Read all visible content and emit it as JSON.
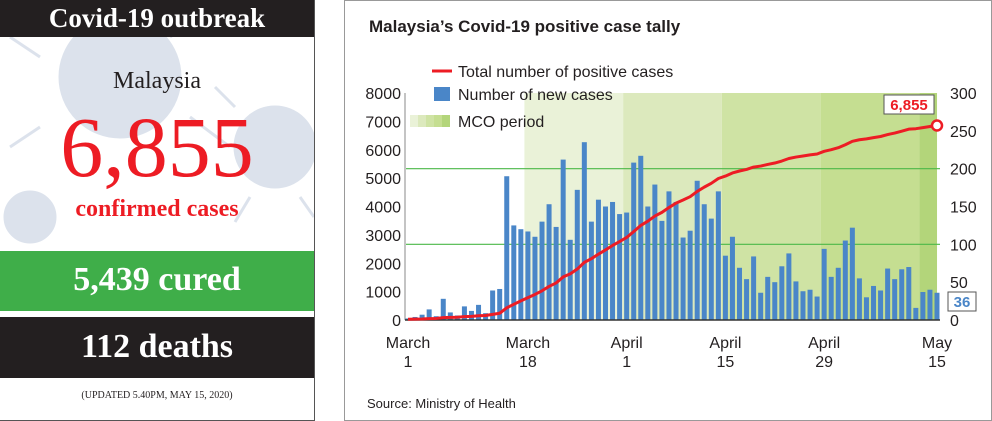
{
  "panel": {
    "header": "Covid-19 outbreak",
    "country": "Malaysia",
    "confirmed_number": "6,855",
    "confirmed_label": "confirmed cases",
    "cured": "5,439 cured",
    "deaths": "112 deaths",
    "updated": "(UPDATED 5.40PM, MAY 15, 2020)"
  },
  "colors": {
    "red": "#ed1c24",
    "green": "#3fae49",
    "black": "#231f20",
    "bar_blue": "#4a86c8"
  },
  "chart_data": {
    "type": "bar+line",
    "title": "Malaysia’s Covid-19 positive case tally",
    "source": "Source: Ministry of Health",
    "legend": [
      "Total number of positive cases",
      "Number of new cases",
      "MCO period"
    ],
    "legend_placement": "top-left",
    "x_start": "March 1",
    "x_end": "May 15",
    "x_ticks": [
      {
        "day": 0,
        "l1": "March",
        "l2": "1"
      },
      {
        "day": 17,
        "l1": "March",
        "l2": "18"
      },
      {
        "day": 31,
        "l1": "April",
        "l2": "1"
      },
      {
        "day": 45,
        "l1": "April",
        "l2": "15"
      },
      {
        "day": 59,
        "l1": "April",
        "l2": "29"
      },
      {
        "day": 75,
        "l1": "May",
        "l2": "15"
      }
    ],
    "left_axis": {
      "series": "Total number of positive cases",
      "ylim": [
        0,
        8000
      ],
      "ticks": [
        "0",
        "1000",
        "2000",
        "3000",
        "4000",
        "5000",
        "6000",
        "7000",
        "8000"
      ]
    },
    "right_axis": {
      "series": "Number of new cases",
      "ylim": [
        0,
        300
      ],
      "ticks": [
        "0",
        "50",
        "100",
        "150",
        "200",
        "250",
        "300"
      ]
    },
    "gridlines_right_axis": [
      100,
      200
    ],
    "mco_phases": [
      {
        "start_day": 17,
        "end_day": 31,
        "color": "#eaf2d8"
      },
      {
        "start_day": 31,
        "end_day": 45,
        "color": "#dce9bd"
      },
      {
        "start_day": 45,
        "end_day": 59,
        "color": "#cfe3a4"
      },
      {
        "start_day": 59,
        "end_day": 73,
        "color": "#c5de91"
      },
      {
        "start_day": 73,
        "end_day": 75.5,
        "color": "#b3d57a"
      }
    ],
    "new_cases": [
      2,
      4,
      7,
      14,
      5,
      28,
      10,
      6,
      18,
      12,
      20,
      9,
      39,
      41,
      190,
      125,
      120,
      117,
      110,
      130,
      153,
      123,
      212,
      106,
      172,
      235,
      130,
      159,
      150,
      156,
      140,
      142,
      208,
      217,
      150,
      179,
      131,
      170,
      156,
      109,
      118,
      184,
      153,
      134,
      170,
      85,
      110,
      69,
      54,
      84,
      36,
      57,
      50,
      71,
      88,
      51,
      38,
      40,
      31,
      94,
      57,
      69,
      105,
      122,
      55,
      30,
      45,
      39,
      68,
      54,
      67,
      70,
      16,
      37,
      40,
      36
    ],
    "total_cases": [
      25,
      29,
      36,
      50,
      55,
      83,
      93,
      99,
      117,
      129,
      149,
      158,
      197,
      238,
      428,
      553,
      673,
      790,
      900,
      1030,
      1183,
      1306,
      1518,
      1624,
      1796,
      2031,
      2161,
      2320,
      2470,
      2626,
      2766,
      2908,
      3116,
      3333,
      3483,
      3662,
      3793,
      3963,
      4119,
      4228,
      4346,
      4530,
      4683,
      4817,
      4987,
      5072,
      5182,
      5251,
      5305,
      5389,
      5425,
      5482,
      5532,
      5603,
      5691,
      5742,
      5780,
      5820,
      5851,
      5945,
      6002,
      6071,
      6176,
      6298,
      6353,
      6383,
      6428,
      6467,
      6535,
      6589,
      6656,
      6726,
      6742,
      6779,
      6819,
      6855
    ],
    "end_labels": {
      "total": "6,855",
      "new": "36"
    }
  }
}
